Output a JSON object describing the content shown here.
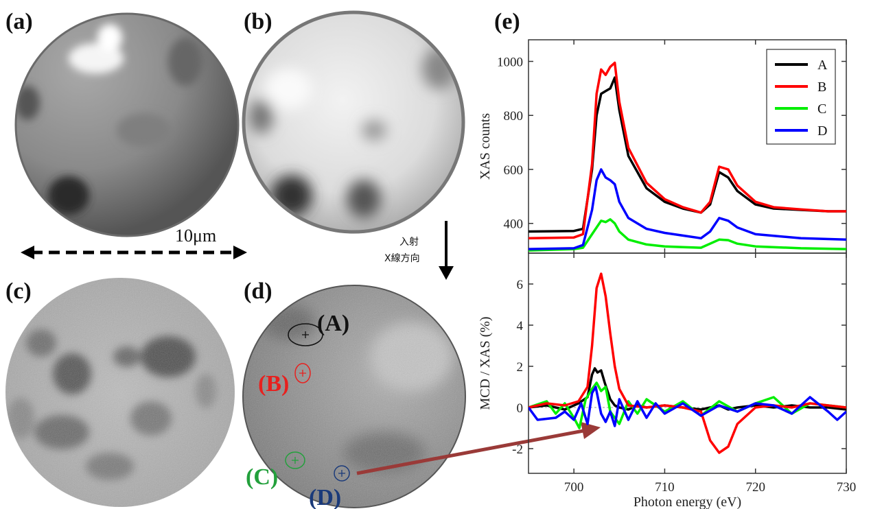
{
  "panel_labels": {
    "a": "(a)",
    "b": "(b)",
    "c": "(c)",
    "d": "(d)",
    "e": "(e)"
  },
  "scale_bar": {
    "text": "10μm"
  },
  "incident_note": {
    "line1": "入射",
    "line2": "X線方向"
  },
  "points": [
    {
      "id": "A",
      "label": "(A)",
      "color": "#111111"
    },
    {
      "id": "B",
      "label": "(B)",
      "color": "#e8201e"
    },
    {
      "id": "C",
      "label": "(C)",
      "color": "#23a03c"
    },
    {
      "id": "D",
      "label": "(D)",
      "color": "#1a3a7a"
    }
  ],
  "arrow_color": "#9a3a38",
  "chart_data": [
    {
      "type": "line",
      "ylabel": "XAS counts",
      "xlabel": "",
      "xlim": [
        695,
        730
      ],
      "ylim": [
        290,
        1080
      ],
      "yticks": [
        400,
        600,
        800,
        1000
      ],
      "legend": {
        "placement": "top-right",
        "entries": [
          "A",
          "B",
          "C",
          "D"
        ]
      },
      "series": [
        {
          "name": "A",
          "color": "#000000",
          "x": [
            695,
            700,
            701,
            702,
            702.5,
            703,
            703.5,
            704,
            704.5,
            705,
            706,
            708,
            710,
            712,
            714,
            715,
            716,
            717,
            718,
            720,
            722,
            725,
            728,
            730
          ],
          "y": [
            370,
            372,
            380,
            600,
            800,
            880,
            890,
            900,
            940,
            820,
            650,
            530,
            480,
            455,
            440,
            470,
            590,
            570,
            520,
            470,
            455,
            450,
            445,
            445
          ]
        },
        {
          "name": "B",
          "color": "#ff0000",
          "x": [
            695,
            700,
            701,
            702,
            702.5,
            703,
            703.5,
            704,
            704.5,
            705,
            706,
            708,
            710,
            712,
            714,
            715,
            716,
            717,
            718,
            720,
            722,
            725,
            728,
            730
          ],
          "y": [
            345,
            348,
            360,
            620,
            880,
            970,
            950,
            980,
            995,
            850,
            680,
            550,
            490,
            460,
            440,
            480,
            610,
            600,
            540,
            480,
            460,
            452,
            445,
            445
          ]
        },
        {
          "name": "C",
          "color": "#00ee00",
          "x": [
            695,
            700,
            701,
            702,
            703,
            703.5,
            704,
            704.5,
            705,
            706,
            708,
            710,
            712,
            714,
            716,
            717,
            718,
            720,
            725,
            730
          ],
          "y": [
            300,
            305,
            310,
            360,
            410,
            405,
            415,
            400,
            370,
            340,
            322,
            315,
            312,
            310,
            340,
            338,
            325,
            315,
            308,
            305
          ]
        },
        {
          "name": "D",
          "color": "#0000ff",
          "x": [
            695,
            700,
            701,
            702,
            702.5,
            703,
            703.5,
            704,
            704.5,
            705,
            706,
            708,
            710,
            712,
            714,
            715,
            716,
            717,
            718,
            720,
            725,
            730
          ],
          "y": [
            305,
            308,
            320,
            450,
            560,
            600,
            570,
            560,
            545,
            480,
            420,
            380,
            365,
            355,
            345,
            370,
            420,
            410,
            385,
            360,
            345,
            340
          ]
        }
      ]
    },
    {
      "type": "line",
      "ylabel": "MCD / XAS (%)",
      "xlabel": "Photon energy (eV)",
      "xlim": [
        695,
        730
      ],
      "ylim": [
        -3.2,
        7.5
      ],
      "yticks": [
        -2,
        0,
        2,
        4,
        6
      ],
      "xticks": [
        700,
        710,
        720,
        730
      ],
      "series": [
        {
          "name": "A",
          "color": "#000000",
          "x": [
            695,
            697,
            699,
            700.5,
            701.5,
            702,
            702.3,
            702.6,
            703,
            703.4,
            704,
            704.5,
            705,
            706,
            707,
            708,
            710,
            712,
            714,
            715,
            716,
            717,
            718,
            720,
            722,
            724,
            726,
            728,
            730
          ],
          "y": [
            0,
            0.1,
            -0.1,
            0.2,
            0.5,
            1.6,
            1.9,
            1.7,
            1.8,
            1.2,
            0.4,
            0.1,
            0,
            -0.1,
            0.1,
            0,
            0.1,
            0,
            -0.1,
            0,
            0.1,
            -0.1,
            0,
            0.1,
            0,
            0.1,
            0,
            0,
            -0.1
          ]
        },
        {
          "name": "B",
          "color": "#ff0000",
          "x": [
            695,
            697,
            699,
            700.5,
            701.5,
            702,
            702.5,
            703,
            703.5,
            704,
            704.5,
            705,
            706,
            708,
            710,
            712,
            714,
            715,
            716,
            717,
            718,
            720,
            722,
            724,
            726,
            728,
            730
          ],
          "y": [
            0,
            0.2,
            0.1,
            0.3,
            1.0,
            3.0,
            5.8,
            6.5,
            5.4,
            3.6,
            2.0,
            0.9,
            0.1,
            0,
            0.1,
            0,
            -0.2,
            -1.6,
            -2.2,
            -1.9,
            -0.8,
            0,
            0.1,
            0,
            0.2,
            0.1,
            0
          ]
        },
        {
          "name": "C",
          "color": "#00ee00",
          "x": [
            695,
            697,
            698,
            699,
            700,
            700.6,
            701.3,
            702,
            702.5,
            703,
            703.5,
            704,
            705,
            706,
            707,
            708,
            710,
            712,
            714,
            716,
            718,
            720,
            722,
            724,
            726,
            728,
            730
          ],
          "y": [
            0,
            0.3,
            -0.3,
            0.2,
            -0.5,
            -1.0,
            0.4,
            0.9,
            1.2,
            0.8,
            1.0,
            -0.2,
            -0.8,
            0.3,
            -0.3,
            0.4,
            -0.2,
            0.3,
            -0.4,
            0.3,
            -0.2,
            0.2,
            0.5,
            -0.3,
            0.2,
            0.1,
            0
          ]
        },
        {
          "name": "D",
          "color": "#0000ff",
          "x": [
            695,
            696,
            698,
            699,
            700,
            700.8,
            701.5,
            702,
            702.4,
            703,
            703.5,
            704,
            704.5,
            705,
            706,
            707,
            708,
            709,
            710,
            712,
            714,
            716,
            718,
            720,
            722,
            724,
            726,
            728,
            729,
            730
          ],
          "y": [
            0,
            -0.6,
            -0.5,
            -0.2,
            -0.6,
            0.2,
            -0.8,
            0.7,
            1.0,
            -0.3,
            -0.7,
            -0.2,
            -0.9,
            0.4,
            -0.6,
            0.3,
            -0.5,
            0.2,
            -0.3,
            0.2,
            -0.4,
            0.1,
            -0.2,
            0.2,
            0.1,
            -0.3,
            0.5,
            -0.2,
            -0.6,
            -0.2
          ]
        }
      ]
    }
  ]
}
